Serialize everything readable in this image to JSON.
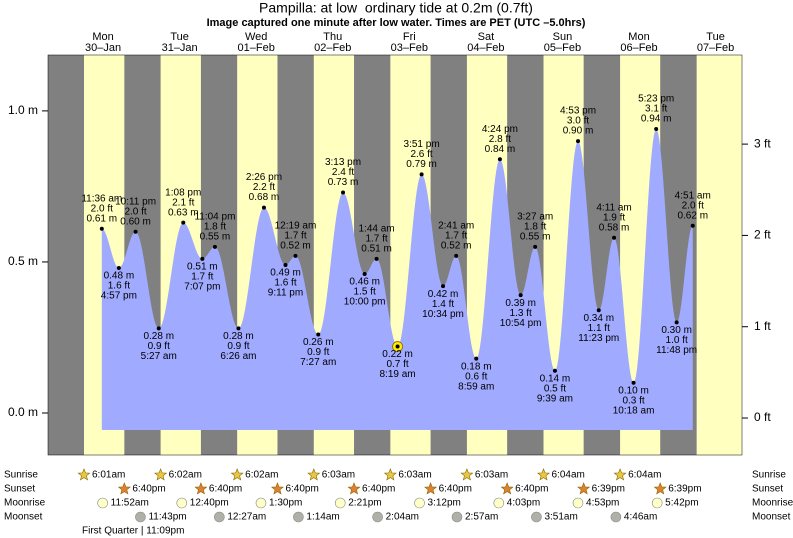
{
  "chart_data": {
    "type": "tide",
    "title": "Pampilla: at low  ordinary tide at 0.2m (0.7ft)",
    "subtitle": "Image captured one minute after low water. Times are PET (UTC –5.0hrs)",
    "ylim": [
      -0.139,
      1.185
    ],
    "yticks": [
      {
        "value": 0,
        "label": "0.0 m"
      },
      {
        "value": 0.5,
        "label": "0.5 m"
      },
      {
        "value": 1,
        "label": "1.0 m"
      }
    ],
    "y2lim": [
      -0.405,
      3.976
    ],
    "y2ticks": [
      {
        "value": 0,
        "label": "0 ft"
      },
      {
        "value": 1,
        "label": "1 ft"
      },
      {
        "value": 2,
        "label": "2 ft"
      },
      {
        "value": 3,
        "label": "3 ft"
      }
    ],
    "area_color": "#a0aaff",
    "day_color": "#ffffc0",
    "night_color": "#808080",
    "date_color": "#dd0000",
    "row_names": {
      "sunrise": "Sunrise",
      "sunset": "Sunset",
      "moonrise": "Moonrise",
      "moonset": "Moonset"
    },
    "moon_phase": "First Quarter | 11:09pm",
    "days": [
      {
        "weekday": "Mon",
        "date": "30–Jan",
        "sunrise": "6:01am",
        "sunset": "6:40pm",
        "moonrise": "11:52am",
        "moonset": "11:43pm",
        "tides": [
          {
            "kind": "high",
            "time": "11:36 am",
            "ft": {
              "value": 2.0,
              "label": "2.0 ft"
            },
            "m": {
              "value": 0.61,
              "label": "0.61 m"
            }
          },
          {
            "kind": "low",
            "time": "4:57 pm",
            "ft": {
              "value": 1.6,
              "label": "1.6 ft"
            },
            "m": {
              "value": 0.48,
              "label": "0.48 m"
            }
          },
          {
            "kind": "high",
            "time": "10:11 pm",
            "ft": {
              "value": 2.0,
              "label": "2.0 ft"
            },
            "m": {
              "value": 0.6,
              "label": "0.60 m"
            }
          }
        ]
      },
      {
        "weekday": "Tue",
        "date": "31–Jan",
        "sunrise": "6:02am",
        "sunset": "6:40pm",
        "moonrise": "12:40pm",
        "moonset": null,
        "tides": [
          {
            "kind": "low",
            "time": "5:27 am",
            "ft": {
              "value": 0.9,
              "label": "0.9 ft"
            },
            "m": {
              "value": 0.28,
              "label": "0.28 m"
            }
          },
          {
            "kind": "high",
            "time": "1:08 pm",
            "ft": {
              "value": 2.1,
              "label": "2.1 ft"
            },
            "m": {
              "value": 0.63,
              "label": "0.63 m"
            }
          },
          {
            "kind": "low",
            "time": "7:07 pm",
            "ft": {
              "value": 1.7,
              "label": "1.7 ft"
            },
            "m": {
              "value": 0.51,
              "label": "0.51 m"
            }
          },
          {
            "kind": "high",
            "time": "11:04 pm",
            "ft": {
              "value": 1.8,
              "label": "1.8 ft"
            },
            "m": {
              "value": 0.55,
              "label": "0.55 m"
            }
          }
        ]
      },
      {
        "weekday": "Wed",
        "date": "01–Feb",
        "sunrise": "6:02am",
        "sunset": "6:40pm",
        "moonrise": "1:30pm",
        "moonset": "12:27am",
        "tides": [
          {
            "kind": "low",
            "time": "6:26 am",
            "ft": {
              "value": 0.9,
              "label": "0.9 ft"
            },
            "m": {
              "value": 0.28,
              "label": "0.28 m"
            }
          },
          {
            "kind": "high",
            "time": "2:26 pm",
            "ft": {
              "value": 2.2,
              "label": "2.2 ft"
            },
            "m": {
              "value": 0.68,
              "label": "0.68 m"
            }
          },
          {
            "kind": "low",
            "time": "9:11 pm",
            "ft": {
              "value": 1.6,
              "label": "1.6 ft"
            },
            "m": {
              "value": 0.49,
              "label": "0.49 m"
            }
          }
        ]
      },
      {
        "weekday": "Thu",
        "date": "02–Feb",
        "sunrise": "6:03am",
        "sunset": "6:40pm",
        "moonrise": "2:21pm",
        "moonset": "1:14am",
        "tides": [
          {
            "kind": "high",
            "time": "12:19 am",
            "ft": {
              "value": 1.7,
              "label": "1.7 ft"
            },
            "m": {
              "value": 0.52,
              "label": "0.52 m"
            }
          },
          {
            "kind": "low",
            "time": "7:27 am",
            "ft": {
              "value": 0.9,
              "label": "0.9 ft"
            },
            "m": {
              "value": 0.26,
              "label": "0.26 m"
            }
          },
          {
            "kind": "high",
            "time": "3:13 pm",
            "ft": {
              "value": 2.4,
              "label": "2.4 ft"
            },
            "m": {
              "value": 0.73,
              "label": "0.73 m"
            }
          },
          {
            "kind": "low",
            "time": "10:00 pm",
            "ft": {
              "value": 1.5,
              "label": "1.5 ft"
            },
            "m": {
              "value": 0.46,
              "label": "0.46 m"
            }
          }
        ]
      },
      {
        "weekday": "Fri",
        "date": "03–Feb",
        "sunrise": "6:03am",
        "sunset": "6:40pm",
        "moonrise": "3:12pm",
        "moonset": "2:04am",
        "tides": [
          {
            "kind": "high",
            "time": "1:44 am",
            "ft": {
              "value": 1.7,
              "label": "1.7 ft"
            },
            "m": {
              "value": 0.51,
              "label": "0.51 m"
            }
          },
          {
            "kind": "low",
            "time": "8:19 am",
            "ft": {
              "value": 0.7,
              "label": "0.7 ft"
            },
            "m": {
              "value": 0.22,
              "label": "0.22 m"
            },
            "highlight": true
          },
          {
            "kind": "high",
            "time": "3:51 pm",
            "ft": {
              "value": 2.6,
              "label": "2.6 ft"
            },
            "m": {
              "value": 0.79,
              "label": "0.79 m"
            }
          },
          {
            "kind": "low",
            "time": "10:34 pm",
            "ft": {
              "value": 1.4,
              "label": "1.4 ft"
            },
            "m": {
              "value": 0.42,
              "label": "0.42 m"
            }
          }
        ]
      },
      {
        "weekday": "Sat",
        "date": "04–Feb",
        "sunrise": "6:03am",
        "sunset": "6:40pm",
        "moonrise": "4:03pm",
        "moonset": "2:57am",
        "tides": [
          {
            "kind": "high",
            "time": "2:41 am",
            "ft": {
              "value": 1.7,
              "label": "1.7 ft"
            },
            "m": {
              "value": 0.52,
              "label": "0.52 m"
            }
          },
          {
            "kind": "low",
            "time": "8:59 am",
            "ft": {
              "value": 0.6,
              "label": "0.6 ft"
            },
            "m": {
              "value": 0.18,
              "label": "0.18 m"
            }
          },
          {
            "kind": "high",
            "time": "4:24 pm",
            "ft": {
              "value": 2.8,
              "label": "2.8 ft"
            },
            "m": {
              "value": 0.84,
              "label": "0.84 m"
            }
          },
          {
            "kind": "low",
            "time": "10:54 pm",
            "ft": {
              "value": 1.3,
              "label": "1.3 ft"
            },
            "m": {
              "value": 0.39,
              "label": "0.39 m"
            }
          }
        ]
      },
      {
        "weekday": "Sun",
        "date": "05–Feb",
        "sunrise": "6:04am",
        "sunset": "6:39pm",
        "moonrise": "4:53pm",
        "moonset": "3:51am",
        "tides": [
          {
            "kind": "high",
            "time": "3:27 am",
            "ft": {
              "value": 1.8,
              "label": "1.8 ft"
            },
            "m": {
              "value": 0.55,
              "label": "0.55 m"
            }
          },
          {
            "kind": "low",
            "time": "9:39 am",
            "ft": {
              "value": 0.5,
              "label": "0.5 ft"
            },
            "m": {
              "value": 0.14,
              "label": "0.14 m"
            }
          },
          {
            "kind": "high",
            "time": "4:53 pm",
            "ft": {
              "value": 3.0,
              "label": "3.0 ft"
            },
            "m": {
              "value": 0.9,
              "label": "0.90 m"
            }
          },
          {
            "kind": "low",
            "time": "11:23 pm",
            "ft": {
              "value": 1.1,
              "label": "1.1 ft"
            },
            "m": {
              "value": 0.34,
              "label": "0.34 m"
            }
          }
        ]
      },
      {
        "weekday": "Mon",
        "date": "06–Feb",
        "sunrise": "6:04am",
        "sunset": "6:39pm",
        "moonrise": "5:42pm",
        "moonset": "4:46am",
        "tides": [
          {
            "kind": "high",
            "time": "4:11 am",
            "ft": {
              "value": 1.9,
              "label": "1.9 ft"
            },
            "m": {
              "value": 0.58,
              "label": "0.58 m"
            }
          },
          {
            "kind": "low",
            "time": "10:18 am",
            "ft": {
              "value": 0.3,
              "label": "0.3 ft"
            },
            "m": {
              "value": 0.1,
              "label": "0.10 m"
            }
          },
          {
            "kind": "high",
            "time": "5:23 pm",
            "ft": {
              "value": 3.1,
              "label": "3.1 ft"
            },
            "m": {
              "value": 0.94,
              "label": "0.94 m"
            }
          },
          {
            "kind": "low",
            "time": "11:48 pm",
            "ft": {
              "value": 1.0,
              "label": "1.0 ft"
            },
            "m": {
              "value": 0.3,
              "label": "0.30 m"
            }
          }
        ]
      },
      {
        "weekday": "Tue",
        "date": "07–Feb",
        "sunrise": null,
        "sunset": null,
        "moonrise": null,
        "moonset": null,
        "tides": [
          {
            "kind": "high",
            "time": "4:51 am",
            "ft": {
              "value": 2.0,
              "label": "2.0 ft"
            },
            "m": {
              "value": 0.62,
              "label": "0.62 m"
            }
          }
        ]
      }
    ]
  }
}
